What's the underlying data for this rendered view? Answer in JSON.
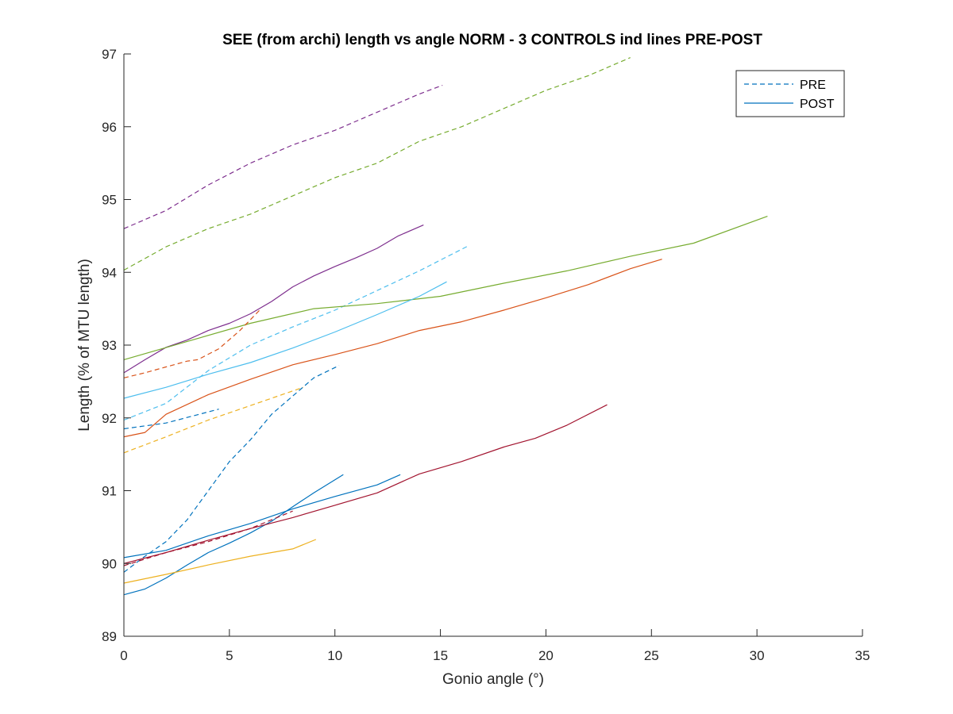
{
  "chart_data": {
    "type": "line",
    "title": "SEE (from archi) length vs angle NORM - 3 CONTROLS ind lines PRE-POST",
    "xlabel": "Gonio angle (°)",
    "ylabel": "Length (% of MTU length)",
    "xlim": [
      0,
      35
    ],
    "ylim": [
      89,
      97
    ],
    "xticks": [
      0,
      5,
      10,
      15,
      20,
      25,
      30,
      35
    ],
    "yticks": [
      89,
      90,
      91,
      92,
      93,
      94,
      95,
      96,
      97
    ],
    "grid": false,
    "legend": {
      "placement": "top-right",
      "entries": [
        {
          "label": "PRE",
          "dash": "dashed",
          "color": "#0072bd"
        },
        {
          "label": "POST",
          "dash": "solid",
          "color": "#0072bd"
        }
      ]
    },
    "series": [
      {
        "color": "#7e2f8e",
        "dash": "dashed",
        "points": [
          [
            0,
            94.6
          ],
          [
            2,
            94.85
          ],
          [
            4,
            95.2
          ],
          [
            6,
            95.5
          ],
          [
            8,
            95.75
          ],
          [
            10,
            95.95
          ],
          [
            12,
            96.2
          ],
          [
            14,
            96.45
          ],
          [
            15.1,
            96.57
          ]
        ]
      },
      {
        "color": "#77ac30",
        "dash": "dashed",
        "points": [
          [
            0,
            94.03
          ],
          [
            2,
            94.35
          ],
          [
            4,
            94.6
          ],
          [
            6,
            94.8
          ],
          [
            8,
            95.05
          ],
          [
            10,
            95.3
          ],
          [
            12,
            95.5
          ],
          [
            14,
            95.8
          ],
          [
            16,
            96.0
          ],
          [
            18,
            96.25
          ],
          [
            20,
            96.5
          ],
          [
            22,
            96.7
          ],
          [
            24,
            96.95
          ]
        ]
      },
      {
        "color": "#7e2f8e",
        "dash": "solid",
        "points": [
          [
            0,
            92.62
          ],
          [
            1,
            92.8
          ],
          [
            2,
            92.97
          ],
          [
            3,
            93.07
          ],
          [
            4,
            93.2
          ],
          [
            5,
            93.3
          ],
          [
            6,
            93.43
          ],
          [
            7,
            93.6
          ],
          [
            8,
            93.8
          ],
          [
            9,
            93.95
          ],
          [
            10,
            94.08
          ],
          [
            11,
            94.2
          ],
          [
            12,
            94.33
          ],
          [
            13,
            94.5
          ],
          [
            14.2,
            94.65
          ]
        ]
      },
      {
        "color": "#4dbeee",
        "dash": "dashed",
        "points": [
          [
            0,
            91.97
          ],
          [
            2,
            92.2
          ],
          [
            4,
            92.65
          ],
          [
            6,
            93.0
          ],
          [
            8,
            93.25
          ],
          [
            10,
            93.48
          ],
          [
            12,
            93.75
          ],
          [
            14,
            94.02
          ],
          [
            16.3,
            94.36
          ]
        ]
      },
      {
        "color": "#77ac30",
        "dash": "solid",
        "points": [
          [
            0,
            92.8
          ],
          [
            3,
            93.05
          ],
          [
            6,
            93.3
          ],
          [
            9,
            93.5
          ],
          [
            12,
            93.57
          ],
          [
            15,
            93.67
          ],
          [
            18,
            93.85
          ],
          [
            21,
            94.02
          ],
          [
            24,
            94.22
          ],
          [
            27,
            94.4
          ],
          [
            30.5,
            94.77
          ]
        ]
      },
      {
        "color": "#4dbeee",
        "dash": "solid",
        "points": [
          [
            0,
            92.27
          ],
          [
            2,
            92.42
          ],
          [
            4,
            92.6
          ],
          [
            6,
            92.76
          ],
          [
            8,
            92.96
          ],
          [
            10,
            93.18
          ],
          [
            12,
            93.42
          ],
          [
            14,
            93.67
          ],
          [
            15.3,
            93.87
          ]
        ]
      },
      {
        "color": "#d95319",
        "dash": "dashed",
        "points": [
          [
            0,
            92.55
          ],
          [
            1,
            92.62
          ],
          [
            2,
            92.7
          ],
          [
            3,
            92.78
          ],
          [
            3.5,
            92.8
          ],
          [
            4.5,
            92.95
          ],
          [
            5.5,
            93.2
          ],
          [
            6.5,
            93.5
          ]
        ]
      },
      {
        "color": "#d95319",
        "dash": "solid",
        "points": [
          [
            0,
            91.74
          ],
          [
            1,
            91.8
          ],
          [
            2,
            92.05
          ],
          [
            4,
            92.32
          ],
          [
            6,
            92.53
          ],
          [
            8,
            92.73
          ],
          [
            10,
            92.87
          ],
          [
            12,
            93.02
          ],
          [
            14,
            93.2
          ],
          [
            16,
            93.32
          ],
          [
            18,
            93.48
          ],
          [
            20,
            93.65
          ],
          [
            22,
            93.83
          ],
          [
            24,
            94.05
          ],
          [
            25.5,
            94.18
          ]
        ]
      },
      {
        "color": "#0072bd",
        "dash": "dashed",
        "points": [
          [
            0,
            91.85
          ],
          [
            2,
            91.93
          ],
          [
            4.5,
            92.12
          ]
        ]
      },
      {
        "color": "#edb120",
        "dash": "dashed",
        "points": [
          [
            0,
            91.52
          ],
          [
            2,
            91.74
          ],
          [
            4,
            91.97
          ],
          [
            6,
            92.17
          ],
          [
            8,
            92.37
          ],
          [
            8.5,
            92.42
          ]
        ]
      },
      {
        "color": "#0072bd",
        "dash": "dashed",
        "points": [
          [
            0,
            89.88
          ],
          [
            1,
            90.1
          ],
          [
            2,
            90.3
          ],
          [
            3,
            90.6
          ],
          [
            4,
            91.0
          ],
          [
            5,
            91.4
          ],
          [
            6,
            91.7
          ],
          [
            7,
            92.05
          ],
          [
            8,
            92.3
          ],
          [
            9,
            92.55
          ],
          [
            10.2,
            92.72
          ]
        ]
      },
      {
        "color": "#0072bd",
        "dash": "solid",
        "points": [
          [
            0,
            90.08
          ],
          [
            2,
            90.18
          ],
          [
            4,
            90.38
          ],
          [
            6,
            90.55
          ],
          [
            8,
            90.75
          ],
          [
            10,
            90.92
          ],
          [
            12,
            91.08
          ],
          [
            13.1,
            91.22
          ]
        ]
      },
      {
        "color": "#0072bd",
        "dash": "solid",
        "points": [
          [
            0,
            89.57
          ],
          [
            1,
            89.65
          ],
          [
            2,
            89.8
          ],
          [
            3,
            89.98
          ],
          [
            4,
            90.15
          ],
          [
            5,
            90.28
          ],
          [
            6,
            90.42
          ],
          [
            7,
            90.58
          ],
          [
            8,
            90.78
          ],
          [
            9,
            90.97
          ],
          [
            10.4,
            91.22
          ]
        ]
      },
      {
        "color": "#a2142f",
        "dash": "dashed",
        "points": [
          [
            0,
            89.97
          ],
          [
            2,
            90.15
          ],
          [
            4,
            90.3
          ],
          [
            6,
            90.48
          ],
          [
            8,
            90.72
          ]
        ]
      },
      {
        "color": "#a2142f",
        "dash": "solid",
        "points": [
          [
            0,
            90.0
          ],
          [
            2,
            90.15
          ],
          [
            4,
            90.32
          ],
          [
            6,
            90.48
          ],
          [
            8,
            90.63
          ],
          [
            10,
            90.8
          ],
          [
            12,
            90.97
          ],
          [
            14,
            91.23
          ],
          [
            16,
            91.4
          ],
          [
            18,
            91.6
          ],
          [
            19.5,
            91.72
          ],
          [
            21,
            91.9
          ],
          [
            22.9,
            92.18
          ]
        ]
      },
      {
        "color": "#edb120",
        "dash": "solid",
        "points": [
          [
            0,
            89.73
          ],
          [
            2,
            89.85
          ],
          [
            4,
            89.98
          ],
          [
            6,
            90.1
          ],
          [
            8,
            90.2
          ],
          [
            9.1,
            90.33
          ]
        ]
      }
    ]
  }
}
